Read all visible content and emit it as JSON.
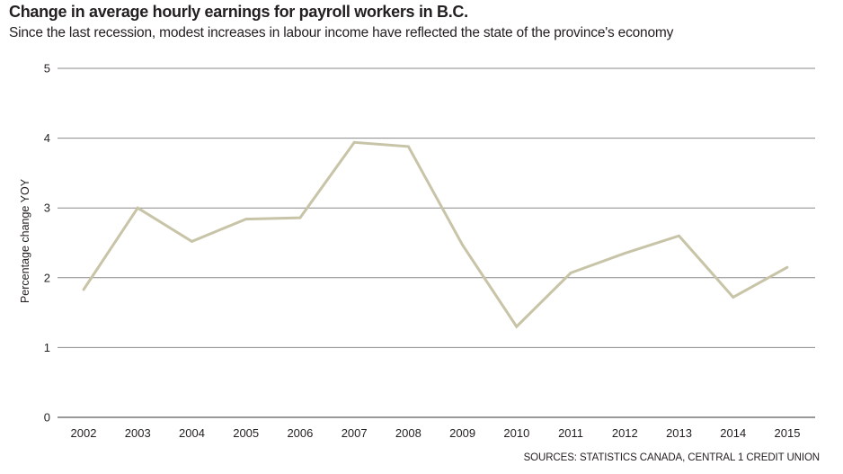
{
  "title": "Change in average hourly earnings for payroll workers in B.C.",
  "subtitle": "Since the last recession, modest increases in labour income have reflected the state of the province's economy",
  "source": "SOURCES: STATISTICS CANADA, CENTRAL 1 CREDIT UNION",
  "colors": {
    "line": "#c8c4a8",
    "grid": "#8a8a8a",
    "text": "#231f20"
  },
  "chart_data": {
    "type": "line",
    "title": "Change in average hourly earnings for payroll workers in B.C.",
    "subtitle": "Since the last recession, modest increases in labour income have reflected the state of the province's economy",
    "xlabel": "",
    "ylabel": "Percentage change YOY",
    "categories": [
      "2002",
      "2003",
      "2004",
      "2005",
      "2006",
      "2007",
      "2008",
      "2009",
      "2010",
      "2011",
      "2012",
      "2013",
      "2014",
      "2015"
    ],
    "series": [
      {
        "name": "",
        "values": [
          1.83,
          3.0,
          2.52,
          2.84,
          2.86,
          3.94,
          3.88,
          2.47,
          1.3,
          2.07,
          2.35,
          2.6,
          1.72,
          2.15
        ]
      }
    ],
    "ylim": [
      0,
      5
    ],
    "yticks": [
      "0",
      "1",
      "2",
      "3",
      "4",
      "5"
    ],
    "grid": true,
    "legend": "none"
  }
}
